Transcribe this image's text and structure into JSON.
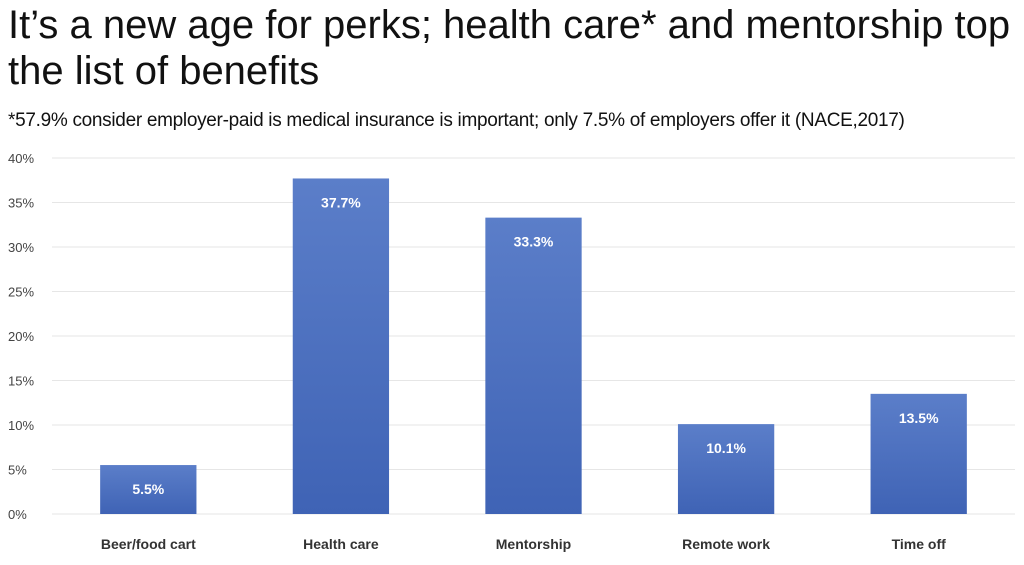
{
  "chart_data": {
    "type": "bar",
    "title": "It’s a new age for perks; health care* and mentorship top the list of benefits",
    "subtitle": "*57.9% consider employer-paid is medical insurance is important; only 7.5% of employers offer it (NACE,2017)",
    "categories": [
      "Beer/food cart",
      "Health care",
      "Mentorship",
      "Remote work",
      "Time off"
    ],
    "values": [
      5.5,
      37.7,
      33.3,
      10.1,
      13.5
    ],
    "data_labels": [
      "5.5%",
      "37.7%",
      "33.3%",
      "10.1%",
      "13.5%"
    ],
    "yticks": [
      "0%",
      "5%",
      "10%",
      "15%",
      "20%",
      "25%",
      "30%",
      "35%",
      "40%"
    ],
    "ylim": [
      0,
      40
    ],
    "xlabel": "",
    "ylabel": "",
    "grid": true,
    "colors": {
      "bar_top": "#5b7ec9",
      "bar_bottom": "#3f63b5",
      "grid": "#e6e6e6"
    }
  }
}
